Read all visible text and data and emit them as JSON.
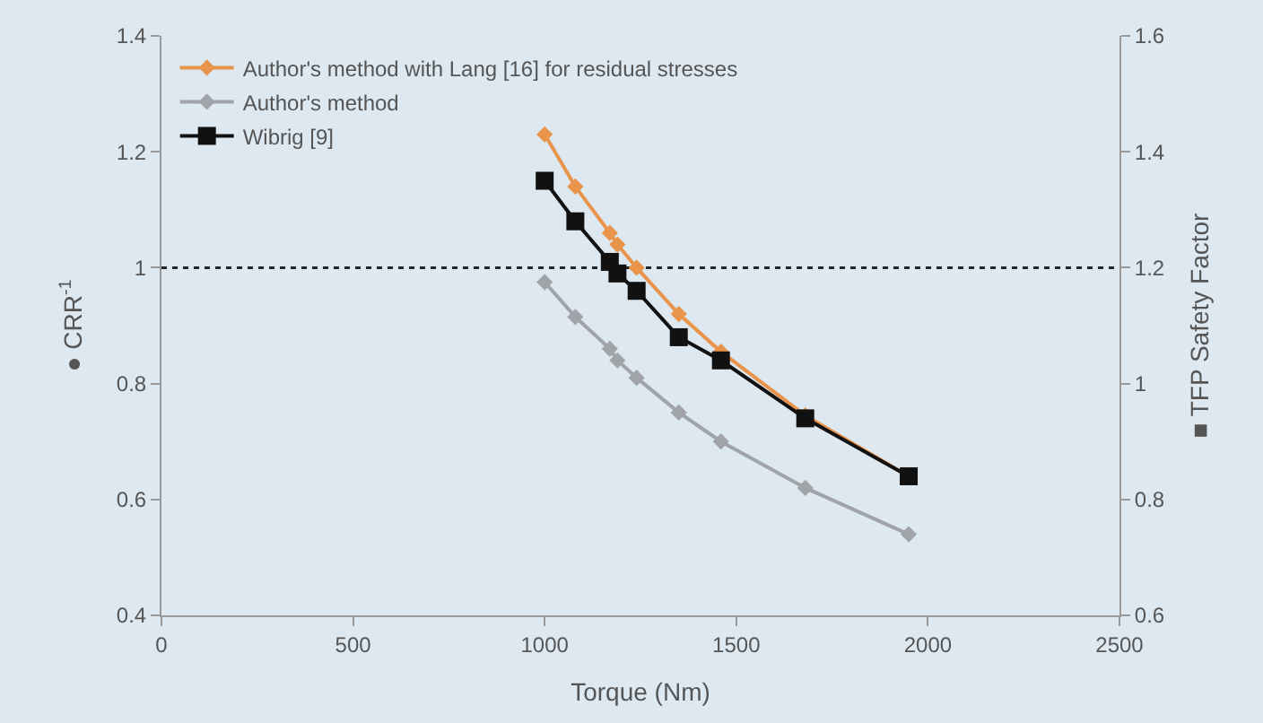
{
  "chart_data": {
    "type": "line",
    "xlabel": "Torque (Nm)",
    "ylabel": "● CRR$^{-1}$",
    "y2label": "■ TFP Safety Factor",
    "x": [
      1000,
      1080,
      1170,
      1190,
      1240,
      1350,
      1460,
      1680,
      1950
    ],
    "series": [
      {
        "name": "Author's method with Lang [16] for residual stresses",
        "color": "#e8944a",
        "marker": "diamond",
        "values": [
          1.23,
          1.14,
          1.06,
          1.04,
          1.0,
          0.92,
          0.855,
          0.745,
          0.64
        ]
      },
      {
        "name": "Author's method",
        "color": "#a0a4a8",
        "marker": "diamond",
        "values": [
          0.975,
          0.915,
          0.86,
          0.84,
          0.81,
          0.75,
          0.7,
          0.62,
          0.54
        ]
      },
      {
        "name": "Wibrig [9]",
        "color": "#111111",
        "marker": "square",
        "axis": "y2",
        "values": [
          1.35,
          1.28,
          1.21,
          1.19,
          1.16,
          1.08,
          1.04,
          0.94,
          0.84
        ]
      }
    ],
    "xlim": [
      0,
      2500
    ],
    "xticks": [
      0,
      500,
      1000,
      1500,
      2000,
      2500
    ],
    "ylim": [
      0.4,
      1.4
    ],
    "yticks": [
      0.4,
      0.6,
      0.8,
      1,
      1.2,
      1.4
    ],
    "y2lim": [
      0.6,
      1.6
    ],
    "y2ticks": [
      0.6,
      0.8,
      1,
      1.2,
      1.4,
      1.6
    ],
    "ref_lines": [
      {
        "axis": "y",
        "value": 1,
        "color": "#222222",
        "line_style": "dotted"
      }
    ],
    "grid": false,
    "legend": "top left",
    "line_style": "solid"
  }
}
